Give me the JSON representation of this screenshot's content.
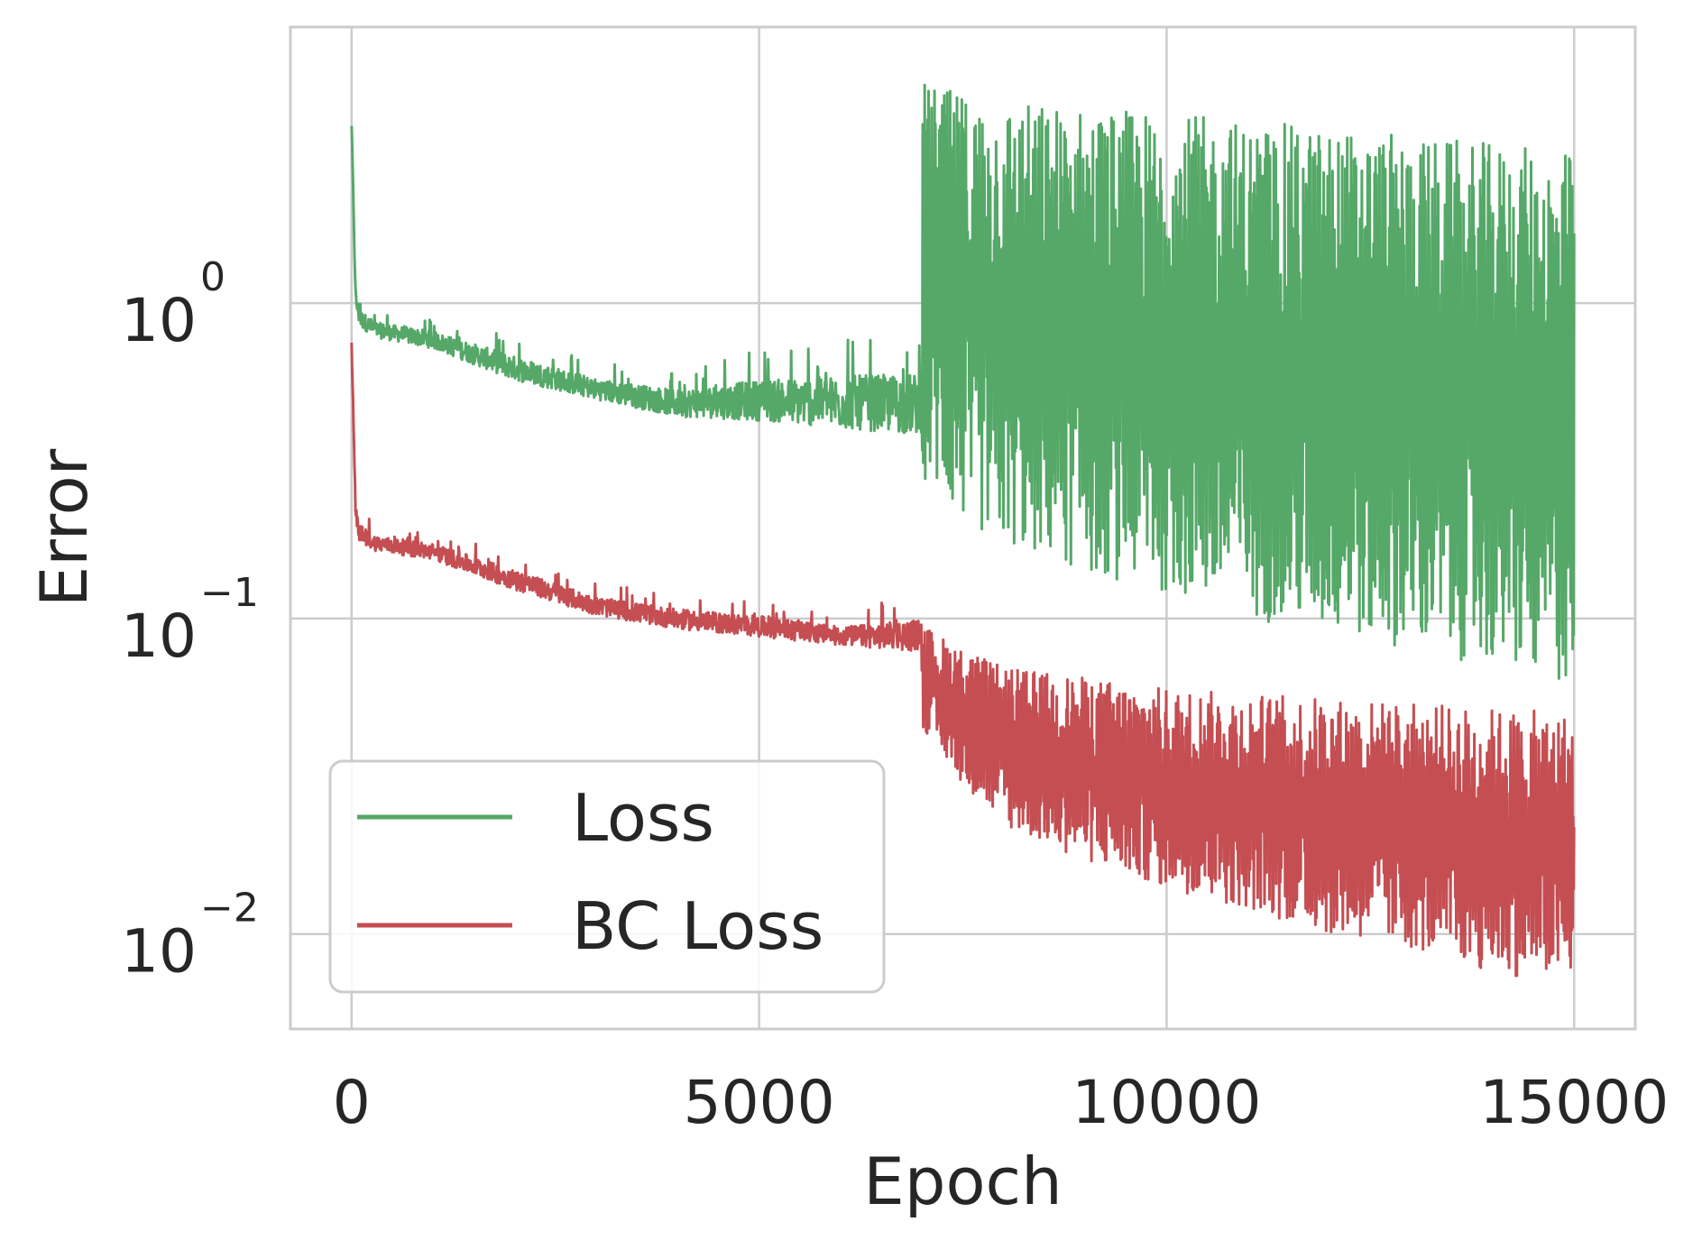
{
  "chart_data": {
    "type": "line",
    "title": "",
    "xlabel": "Epoch",
    "ylabel": "Error",
    "xlim": [
      -750,
      15750
    ],
    "ylim": [
      0.005,
      7.5
    ],
    "yscale": "log",
    "grid": true,
    "legend_position": "lower-left",
    "x_ticks": [
      {
        "value": 0,
        "label": "0"
      },
      {
        "value": 5000,
        "label": "5000"
      },
      {
        "value": 10000,
        "label": "10000"
      },
      {
        "value": 15000,
        "label": "15000"
      }
    ],
    "y_ticks": [
      {
        "value": 1,
        "base": "10",
        "exponent": "0"
      },
      {
        "value": 0.1,
        "base": "10",
        "exponent": "−1"
      },
      {
        "value": 0.01,
        "base": "10",
        "exponent": "−2"
      }
    ],
    "series": [
      {
        "name": "Loss",
        "color": "#55a868",
        "upper": {
          "x": [
            0,
            50,
            100,
            300,
            1000,
            2000,
            3000,
            4000,
            5000,
            6000,
            6990,
            7010,
            7500,
            8000,
            9000,
            10000,
            11000,
            12000,
            13000,
            14000,
            15000
          ],
          "y": [
            4.1,
            1.2,
            1.05,
            0.95,
            0.9,
            0.78,
            0.65,
            0.62,
            0.72,
            0.8,
            0.85,
            5.0,
            4.6,
            4.4,
            4.2,
            4.0,
            3.8,
            3.6,
            3.4,
            3.2,
            3.0
          ]
        },
        "lower": {
          "x": [
            0,
            50,
            100,
            300,
            1000,
            2000,
            3000,
            4000,
            5000,
            6000,
            6990,
            7010,
            7500,
            8000,
            9000,
            10000,
            11000,
            12000,
            13000,
            14000,
            15000
          ],
          "y": [
            3.5,
            0.95,
            0.82,
            0.76,
            0.7,
            0.55,
            0.48,
            0.42,
            0.4,
            0.37,
            0.35,
            0.28,
            0.2,
            0.17,
            0.14,
            0.12,
            0.1,
            0.09,
            0.08,
            0.07,
            0.06
          ]
        }
      },
      {
        "name": "BC Loss",
        "color": "#c44e52",
        "upper": {
          "x": [
            0,
            50,
            100,
            300,
            1000,
            2000,
            3000,
            4000,
            5000,
            6000,
            6990,
            7010,
            7500,
            8000,
            9000,
            10000,
            11000,
            12000,
            13000,
            14000,
            15000
          ],
          "y": [
            0.85,
            0.25,
            0.22,
            0.2,
            0.19,
            0.16,
            0.13,
            0.12,
            0.115,
            0.105,
            0.12,
            0.095,
            0.08,
            0.07,
            0.065,
            0.06,
            0.058,
            0.056,
            0.054,
            0.052,
            0.05
          ]
        },
        "lower": {
          "x": [
            0,
            50,
            100,
            300,
            1000,
            2000,
            3000,
            4000,
            5000,
            6000,
            6990,
            7010,
            7500,
            8000,
            9000,
            10000,
            11000,
            12000,
            13000,
            14000,
            15000
          ],
          "y": [
            0.7,
            0.2,
            0.17,
            0.16,
            0.15,
            0.12,
            0.1,
            0.09,
            0.085,
            0.08,
            0.075,
            0.045,
            0.03,
            0.022,
            0.017,
            0.014,
            0.012,
            0.01,
            0.009,
            0.0075,
            0.007
          ]
        }
      }
    ]
  }
}
